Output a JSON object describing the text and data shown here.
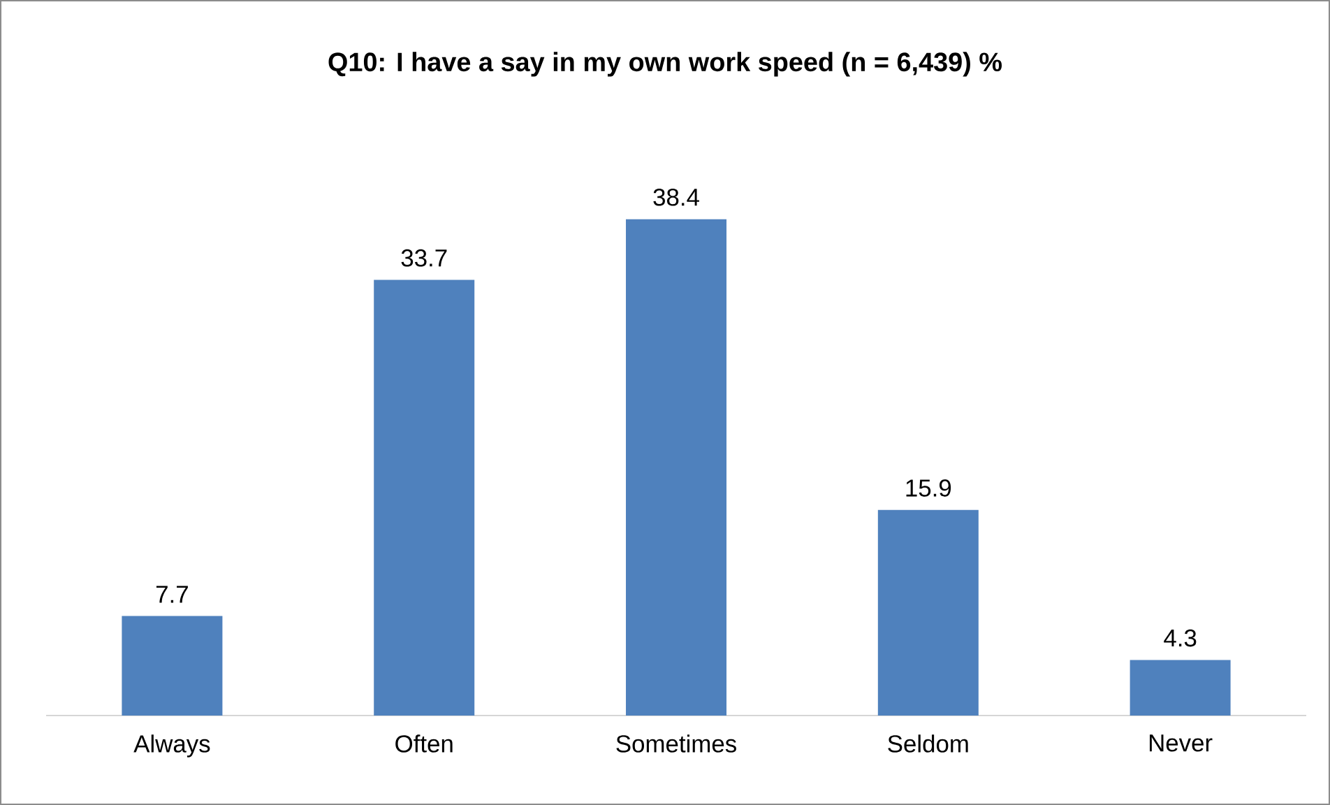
{
  "chart_data": {
    "type": "bar",
    "title": "Q10:  I have a say in my own work speed (n = 6,439)  %",
    "categories": [
      "Always",
      "Often",
      "Sometimes",
      "Seldom",
      "Never"
    ],
    "values": [
      7.7,
      33.7,
      38.4,
      15.9,
      4.3
    ],
    "color": "#4f81bd",
    "data_labels": true
  }
}
